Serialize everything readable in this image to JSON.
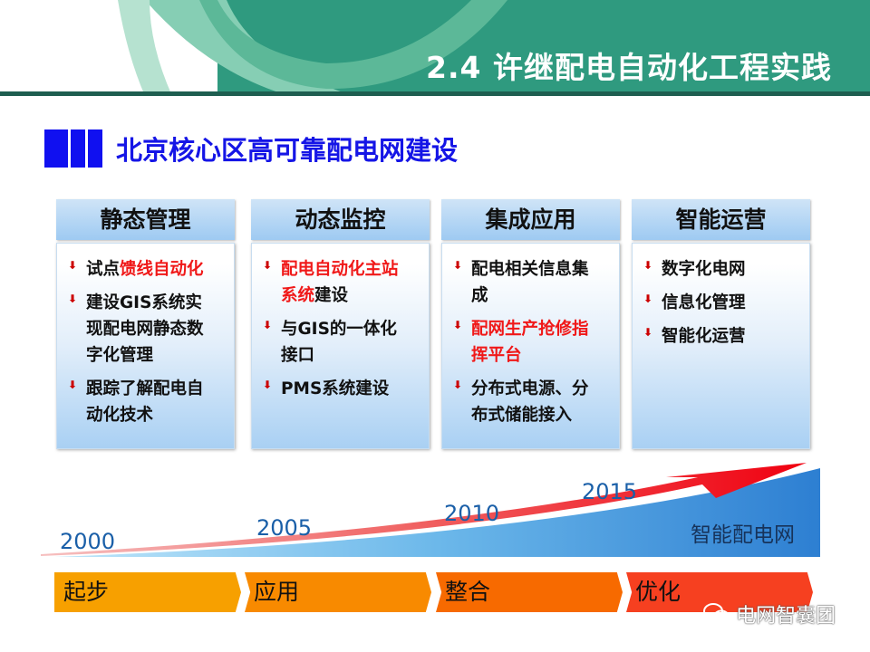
{
  "header": {
    "title": "2.4 许继配电自动化工程实践"
  },
  "section": {
    "title": "北京核心区高可靠配电网建设"
  },
  "columns": [
    {
      "title": "静态管理",
      "items": [
        [
          {
            "text": "试点",
            "red": false
          },
          {
            "text": "馈线自动化",
            "red": true
          }
        ],
        [
          {
            "text": "建设GIS系统实现配电网静态数字化管理",
            "red": false
          }
        ],
        [
          {
            "text": "跟踪了解配电自动化技术",
            "red": false
          }
        ]
      ]
    },
    {
      "title": "动态监控",
      "items": [
        [
          {
            "text": "配电自动化主站系统",
            "red": true
          },
          {
            "text": "建设",
            "red": false
          }
        ],
        [
          {
            "text": "与GIS的一体化接口",
            "red": false
          }
        ],
        [
          {
            "text": "PMS系统建设",
            "red": false
          }
        ]
      ]
    },
    {
      "title": "集成应用",
      "items": [
        [
          {
            "text": "配电相关信息集成",
            "red": false
          }
        ],
        [
          {
            "text": "配网生产抢修指挥平台",
            "red": true
          }
        ],
        [
          {
            "text": "分布式电源、分布式储能接入",
            "red": false
          }
        ]
      ]
    },
    {
      "title": "智能运营",
      "items": [
        [
          {
            "text": "数字化电网",
            "red": false
          }
        ],
        [
          {
            "text": "信息化管理",
            "red": false
          }
        ],
        [
          {
            "text": "智能化运营",
            "red": false
          }
        ]
      ]
    }
  ],
  "timeline": {
    "years": [
      "2000",
      "2005",
      "2010",
      "2015"
    ],
    "label": "智能配电网",
    "stages": [
      {
        "label": "起步",
        "color": "#f7a000"
      },
      {
        "label": "应用",
        "color": "#f88a00"
      },
      {
        "label": "整合",
        "color": "#f76a00"
      },
      {
        "label": "优化",
        "color": "#f64020"
      }
    ]
  },
  "watermark": {
    "text": "电网智囊团",
    "icon": "wechat-icon"
  }
}
